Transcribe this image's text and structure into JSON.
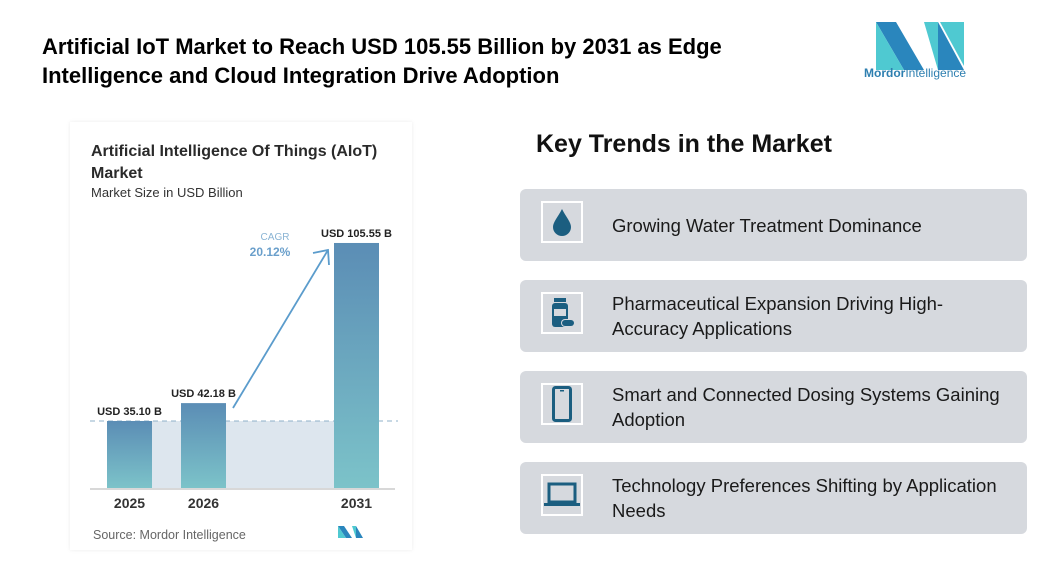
{
  "header": {
    "title": "Artificial IoT Market to Reach USD 105.55 Billion by 2031 as Edge Intelligence and Cloud Integration Drive Adoption"
  },
  "logo": {
    "brand": "Mordor",
    "brand2": "Intelligence"
  },
  "chart_data": {
    "type": "bar",
    "title": "Artificial Intelligence Of Things (AIoT) Market",
    "subtitle": "Market Size in USD Billion",
    "categories": [
      "2025",
      "2026",
      "2031"
    ],
    "values": [
      35.1,
      42.18,
      105.55
    ],
    "data_labels": [
      "USD 35.10 B",
      "USD 42.18 B",
      "USD 105.55 B"
    ],
    "annotation": {
      "label": "CAGR",
      "value": "20.12%"
    },
    "source": "Source: Mordor Intelligence",
    "colors": {
      "bar_top": "#5b8db5",
      "bar_bottom": "#7cc3c9",
      "arrow": "#5b9ccc",
      "band": "#dde6ee"
    }
  },
  "trends": {
    "title": "Key Trends in the Market",
    "items": [
      {
        "icon": "water-drop-icon",
        "label": "Growing Water Treatment Dominance"
      },
      {
        "icon": "medicine-bottle-icon",
        "label": "Pharmaceutical Expansion Driving High-Accuracy Applications"
      },
      {
        "icon": "smartphone-icon",
        "label": "Smart and Connected Dosing Systems Gaining Adoption"
      },
      {
        "icon": "laptop-icon",
        "label": "Technology Preferences Shifting by Application Needs"
      }
    ],
    "icon_color": "#1b5e80"
  }
}
